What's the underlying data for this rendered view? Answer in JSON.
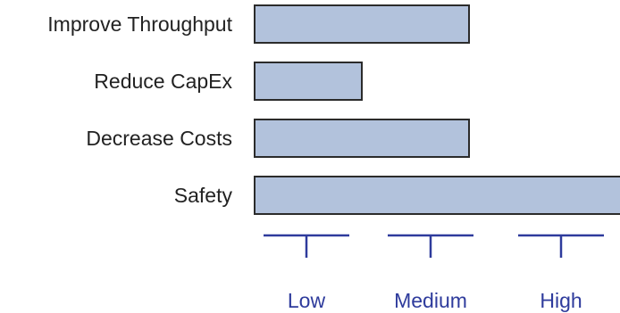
{
  "chart_data": {
    "type": "bar",
    "orientation": "horizontal",
    "categories": [
      "Improve Throughput",
      "Reduce CapEx",
      "Decrease Costs",
      "Safety"
    ],
    "values": [
      2,
      1,
      2,
      3.5
    ],
    "scale_labels": [
      {
        "label": "Low",
        "value": 1
      },
      {
        "label": "Medium",
        "value": 2
      },
      {
        "label": "High",
        "value": 3
      }
    ],
    "xlim": [
      0,
      3.5
    ],
    "bar_color": "#b2c2dc",
    "bar_border_color": "#2b2b2b",
    "axis_color": "#2e3b9c",
    "label_color": "#2e3b9c",
    "grid": false,
    "legend": "none"
  }
}
